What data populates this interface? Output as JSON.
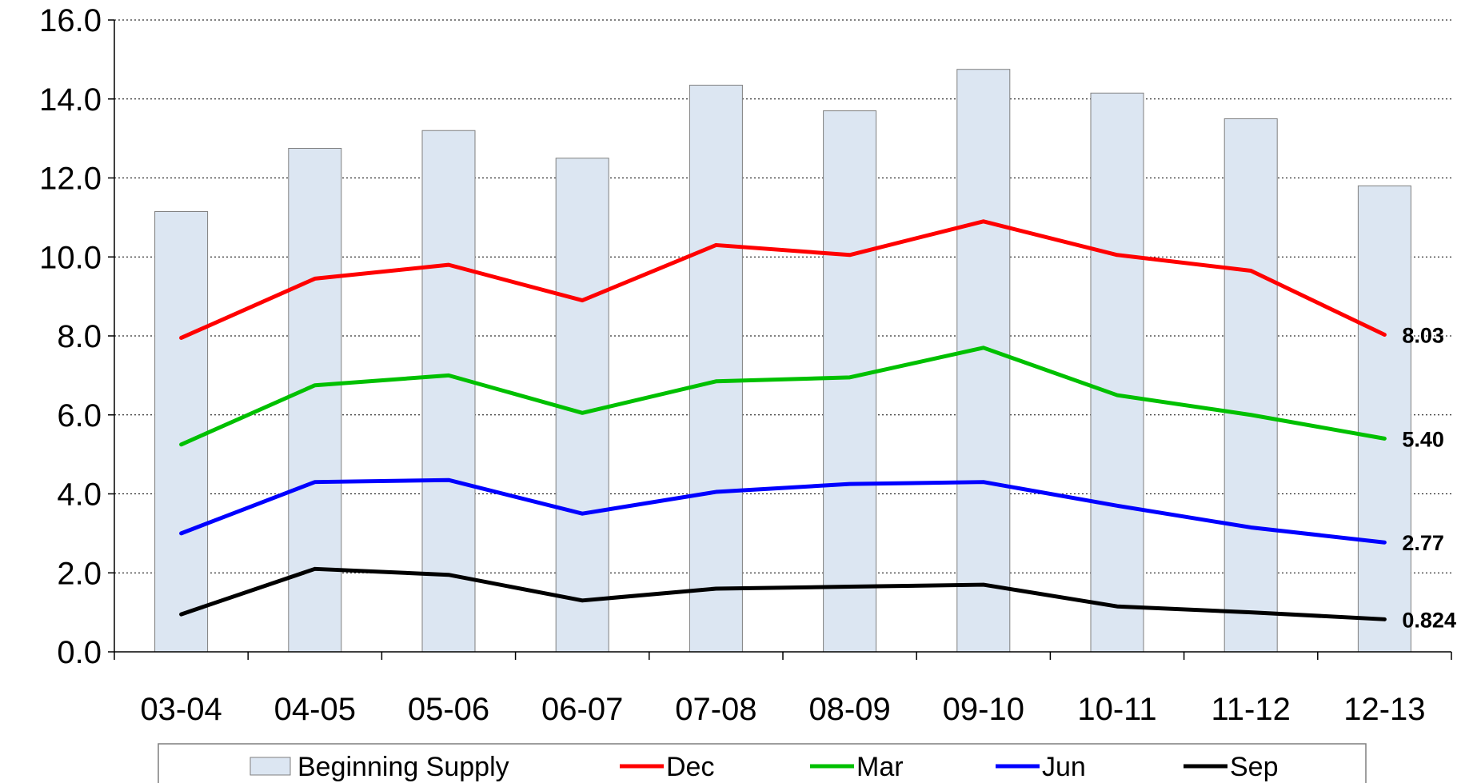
{
  "chart_data": {
    "type": "bar",
    "categories": [
      "03-04",
      "04-05",
      "05-06",
      "06-07",
      "07-08",
      "08-09",
      "09-10",
      "10-11",
      "11-12",
      "12-13"
    ],
    "ylim": [
      0,
      16
    ],
    "yticks": [
      "0.0",
      "2.0",
      "4.0",
      "6.0",
      "8.0",
      "10.0",
      "12.0",
      "14.0",
      "16.0"
    ],
    "grid": "horizontal dotted",
    "legend_position": "bottom",
    "bars": {
      "name": "Beginning Supply",
      "color": "#dce6f2",
      "values": [
        11.15,
        12.75,
        13.2,
        12.5,
        14.35,
        13.7,
        14.75,
        14.15,
        13.5,
        11.8
      ]
    },
    "series": [
      {
        "name": "Dec",
        "type": "line",
        "color": "#ff0000",
        "values": [
          7.95,
          9.45,
          9.8,
          8.9,
          10.3,
          10.05,
          10.9,
          10.05,
          9.65,
          8.03
        ],
        "end_label": "8.03"
      },
      {
        "name": "Mar",
        "type": "line",
        "color": "#00c000",
        "values": [
          5.25,
          6.75,
          7.0,
          6.05,
          6.85,
          6.95,
          7.7,
          6.5,
          6.0,
          5.4
        ],
        "end_label": "5.40"
      },
      {
        "name": "Jun",
        "type": "line",
        "color": "#0000ff",
        "values": [
          3.0,
          4.3,
          4.35,
          3.5,
          4.05,
          4.25,
          4.3,
          3.7,
          3.15,
          2.77
        ],
        "end_label": "2.77"
      },
      {
        "name": "Sep",
        "type": "line",
        "color": "#000000",
        "values": [
          0.95,
          2.1,
          1.95,
          1.3,
          1.6,
          1.65,
          1.7,
          1.15,
          1.0,
          0.824
        ],
        "end_label": "0.824"
      }
    ]
  }
}
